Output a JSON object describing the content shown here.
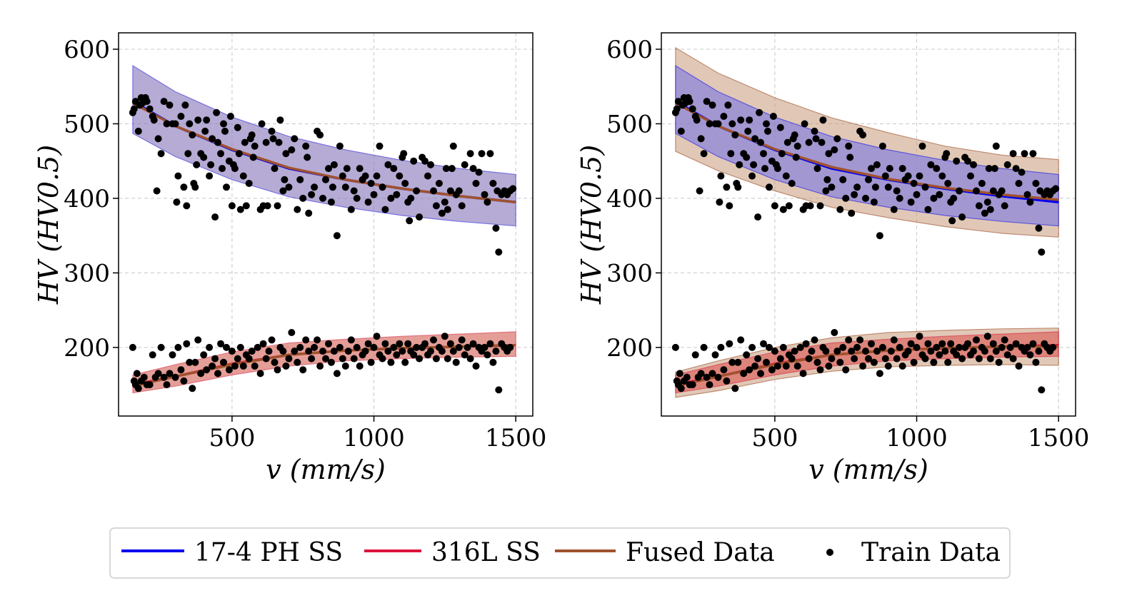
{
  "chart_data": [
    {
      "type": "scatter",
      "panel": "left",
      "title": "",
      "xlabel": "v (mm/s)",
      "ylabel": "HV (HV0.5)",
      "xlim": [
        100,
        1560
      ],
      "ylim": [
        108,
        622
      ],
      "xticks": [
        500,
        1000,
        1500
      ],
      "yticks": [
        200,
        300,
        400,
        500,
        600
      ],
      "grid": true,
      "series": [
        {
          "name": "17-4 PH SS",
          "color": "#0000ee",
          "x": [
            150,
            300,
            500,
            700,
            900,
            1100,
            1300,
            1500
          ],
          "y": [
            530,
            497,
            465,
            440,
            425,
            413,
            403,
            395
          ],
          "band_lower": [
            487,
            456,
            425,
            402,
            388,
            377,
            369,
            363
          ],
          "band_upper": [
            578,
            543,
            509,
            483,
            465,
            451,
            440,
            432
          ]
        },
        {
          "name": "316L SS",
          "color": "#dc143c",
          "x": [
            150,
            300,
            500,
            700,
            900,
            1100,
            1300,
            1500
          ],
          "y": [
            150,
            161,
            178,
            190,
            196,
            199,
            201,
            203
          ],
          "band_lower": [
            139,
            148,
            163,
            175,
            182,
            185,
            187,
            188
          ],
          "band_upper": [
            163,
            177,
            194,
            206,
            211,
            215,
            218,
            221
          ]
        },
        {
          "name": "Fused Data",
          "color": "#a0522d",
          "x": [
            150,
            300,
            500,
            700,
            900,
            1100,
            1300,
            1500
          ],
          "y_high": [
            528,
            497,
            466,
            441,
            425,
            413,
            403,
            395
          ],
          "y_low": [
            148,
            161,
            177,
            190,
            196,
            199,
            201,
            203
          ]
        }
      ]
    },
    {
      "type": "scatter",
      "panel": "right",
      "title": "",
      "xlabel": "v (mm/s)",
      "ylabel": "HV (HV0.5)",
      "xlim": [
        100,
        1560
      ],
      "ylim": [
        108,
        622
      ],
      "xticks": [
        500,
        1000,
        1500
      ],
      "yticks": [
        200,
        300,
        400,
        500,
        600
      ],
      "grid": true,
      "series": [
        {
          "name": "17-4 PH SS",
          "color": "#0000ee",
          "x": [
            150,
            300,
            500,
            700,
            900,
            1100,
            1300,
            1500
          ],
          "y": [
            530,
            497,
            465,
            440,
            425,
            413,
            403,
            395
          ],
          "band_lower": [
            487,
            456,
            425,
            402,
            388,
            377,
            369,
            363
          ],
          "band_upper": [
            578,
            543,
            509,
            483,
            465,
            451,
            440,
            432
          ]
        },
        {
          "name": "316L SS",
          "color": "#dc143c",
          "x": [
            150,
            300,
            500,
            700,
            900,
            1100,
            1300,
            1500
          ],
          "y": [
            150,
            161,
            178,
            190,
            196,
            199,
            201,
            203
          ],
          "band_lower": [
            139,
            148,
            163,
            175,
            182,
            185,
            187,
            188
          ],
          "band_upper": [
            163,
            177,
            194,
            206,
            211,
            215,
            218,
            221
          ]
        },
        {
          "name": "Fused Data",
          "color": "#a0522d",
          "x": [
            150,
            300,
            500,
            700,
            900,
            1100,
            1300,
            1500
          ],
          "y_high": [
            528,
            497,
            466,
            442,
            426,
            414,
            405,
            398
          ],
          "y_low": [
            148,
            161,
            177,
            190,
            196,
            199,
            201,
            201
          ],
          "band_high_lower": [
            463,
            437,
            410,
            388,
            374,
            362,
            353,
            348
          ],
          "band_high_upper": [
            602,
            568,
            535,
            508,
            488,
            470,
            458,
            452
          ],
          "band_low_lower": [
            133,
            142,
            157,
            168,
            174,
            176,
            177,
            176
          ],
          "band_low_upper": [
            167,
            182,
            200,
            213,
            220,
            223,
            225,
            226
          ]
        }
      ]
    }
  ],
  "train_data": {
    "name": "Train Data",
    "color": "#000000",
    "upper_points": [
      [
        150,
        515
      ],
      [
        155,
        520
      ],
      [
        160,
        530
      ],
      [
        170,
        490
      ],
      [
        175,
        525
      ],
      [
        180,
        535
      ],
      [
        185,
        528
      ],
      [
        195,
        535
      ],
      [
        200,
        530
      ],
      [
        210,
        520
      ],
      [
        220,
        510
      ],
      [
        225,
        505
      ],
      [
        235,
        410
      ],
      [
        240,
        480
      ],
      [
        250,
        460
      ],
      [
        260,
        530
      ],
      [
        270,
        500
      ],
      [
        280,
        525
      ],
      [
        290,
        500
      ],
      [
        300,
        500
      ],
      [
        305,
        395
      ],
      [
        310,
        430
      ],
      [
        320,
        510
      ],
      [
        330,
        415
      ],
      [
        335,
        525
      ],
      [
        340,
        390
      ],
      [
        345,
        460
      ],
      [
        350,
        500
      ],
      [
        360,
        485
      ],
      [
        365,
        420
      ],
      [
        370,
        415
      ],
      [
        375,
        445
      ],
      [
        380,
        505
      ],
      [
        390,
        460
      ],
      [
        400,
        455
      ],
      [
        405,
        490
      ],
      [
        410,
        505
      ],
      [
        420,
        430
      ],
      [
        425,
        445
      ],
      [
        430,
        480
      ],
      [
        440,
        375
      ],
      [
        445,
        515
      ],
      [
        450,
        475
      ],
      [
        460,
        460
      ],
      [
        465,
        440
      ],
      [
        470,
        500
      ],
      [
        475,
        490
      ],
      [
        480,
        415
      ],
      [
        490,
        450
      ],
      [
        495,
        510
      ],
      [
        500,
        390
      ],
      [
        505,
        445
      ],
      [
        510,
        440
      ],
      [
        520,
        495
      ],
      [
        525,
        460
      ],
      [
        530,
        385
      ],
      [
        540,
        430
      ],
      [
        545,
        475
      ],
      [
        550,
        390
      ],
      [
        560,
        420
      ],
      [
        565,
        480
      ],
      [
        570,
        485
      ],
      [
        575,
        455
      ],
      [
        580,
        470
      ],
      [
        600,
        385
      ],
      [
        605,
        500
      ],
      [
        610,
        390
      ],
      [
        620,
        475
      ],
      [
        625,
        390
      ],
      [
        640,
        490
      ],
      [
        645,
        480
      ],
      [
        650,
        440
      ],
      [
        660,
        390
      ],
      [
        665,
        475
      ],
      [
        670,
        505
      ],
      [
        680,
        410
      ],
      [
        685,
        425
      ],
      [
        690,
        460
      ],
      [
        700,
        415
      ],
      [
        710,
        465
      ],
      [
        720,
        480
      ],
      [
        730,
        385
      ],
      [
        740,
        425
      ],
      [
        750,
        400
      ],
      [
        760,
        470
      ],
      [
        765,
        455
      ],
      [
        770,
        380
      ],
      [
        780,
        405
      ],
      [
        790,
        415
      ],
      [
        800,
        490
      ],
      [
        810,
        485
      ],
      [
        820,
        400
      ],
      [
        830,
        425
      ],
      [
        840,
        440
      ],
      [
        850,
        395
      ],
      [
        855,
        415
      ],
      [
        860,
        445
      ],
      [
        870,
        350
      ],
      [
        880,
        470
      ],
      [
        890,
        430
      ],
      [
        900,
        415
      ],
      [
        905,
        440
      ],
      [
        920,
        385
      ],
      [
        930,
        410
      ],
      [
        940,
        400
      ],
      [
        950,
        440
      ],
      [
        960,
        425
      ],
      [
        970,
        430
      ],
      [
        980,
        395
      ],
      [
        990,
        420
      ],
      [
        1000,
        405
      ],
      [
        1010,
        430
      ],
      [
        1020,
        470
      ],
      [
        1030,
        415
      ],
      [
        1040,
        385
      ],
      [
        1050,
        445
      ],
      [
        1060,
        400
      ],
      [
        1070,
        440
      ],
      [
        1080,
        405
      ],
      [
        1090,
        430
      ],
      [
        1100,
        455
      ],
      [
        1105,
        460
      ],
      [
        1110,
        420
      ],
      [
        1120,
        395
      ],
      [
        1125,
        370
      ],
      [
        1130,
        400
      ],
      [
        1140,
        450
      ],
      [
        1150,
        410
      ],
      [
        1160,
        375
      ],
      [
        1170,
        455
      ],
      [
        1180,
        450
      ],
      [
        1190,
        430
      ],
      [
        1200,
        445
      ],
      [
        1210,
        410
      ],
      [
        1220,
        390
      ],
      [
        1230,
        420
      ],
      [
        1240,
        380
      ],
      [
        1250,
        395
      ],
      [
        1255,
        440
      ],
      [
        1260,
        385
      ],
      [
        1270,
        410
      ],
      [
        1275,
        440
      ],
      [
        1280,
        470
      ],
      [
        1290,
        405
      ],
      [
        1300,
        410
      ],
      [
        1310,
        390
      ],
      [
        1320,
        445
      ],
      [
        1340,
        460
      ],
      [
        1350,
        440
      ],
      [
        1360,
        420
      ],
      [
        1370,
        435
      ],
      [
        1380,
        460
      ],
      [
        1390,
        405
      ],
      [
        1400,
        395
      ],
      [
        1410,
        460
      ],
      [
        1420,
        420
      ],
      [
        1430,
        360
      ],
      [
        1435,
        410
      ],
      [
        1440,
        328
      ],
      [
        1450,
        405
      ],
      [
        1460,
        410
      ],
      [
        1470,
        405
      ],
      [
        1480,
        410
      ],
      [
        1490,
        413
      ]
    ],
    "lower_points": [
      [
        150,
        200
      ],
      [
        155,
        155
      ],
      [
        160,
        150
      ],
      [
        165,
        165
      ],
      [
        170,
        145
      ],
      [
        180,
        155
      ],
      [
        190,
        160
      ],
      [
        200,
        150
      ],
      [
        210,
        150
      ],
      [
        220,
        190
      ],
      [
        230,
        160
      ],
      [
        240,
        165
      ],
      [
        250,
        200
      ],
      [
        260,
        160
      ],
      [
        270,
        150
      ],
      [
        280,
        165
      ],
      [
        290,
        190
      ],
      [
        300,
        160
      ],
      [
        310,
        200
      ],
      [
        320,
        170
      ],
      [
        330,
        155
      ],
      [
        340,
        205
      ],
      [
        350,
        180
      ],
      [
        360,
        145
      ],
      [
        370,
        180
      ],
      [
        380,
        210
      ],
      [
        390,
        165
      ],
      [
        400,
        190
      ],
      [
        410,
        170
      ],
      [
        420,
        200
      ],
      [
        430,
        175
      ],
      [
        440,
        185
      ],
      [
        450,
        165
      ],
      [
        460,
        205
      ],
      [
        470,
        180
      ],
      [
        480,
        200
      ],
      [
        490,
        170
      ],
      [
        500,
        195
      ],
      [
        510,
        175
      ],
      [
        520,
        185
      ],
      [
        530,
        200
      ],
      [
        540,
        175
      ],
      [
        550,
        190
      ],
      [
        560,
        185
      ],
      [
        570,
        195
      ],
      [
        580,
        175
      ],
      [
        590,
        200
      ],
      [
        600,
        165
      ],
      [
        610,
        205
      ],
      [
        620,
        185
      ],
      [
        630,
        195
      ],
      [
        640,
        210
      ],
      [
        650,
        180
      ],
      [
        660,
        170
      ],
      [
        670,
        200
      ],
      [
        680,
        195
      ],
      [
        690,
        175
      ],
      [
        700,
        185
      ],
      [
        710,
        220
      ],
      [
        720,
        195
      ],
      [
        730,
        180
      ],
      [
        740,
        200
      ],
      [
        750,
        170
      ],
      [
        760,
        210
      ],
      [
        770,
        195
      ],
      [
        780,
        185
      ],
      [
        790,
        200
      ],
      [
        800,
        210
      ],
      [
        810,
        175
      ],
      [
        820,
        195
      ],
      [
        830,
        185
      ],
      [
        840,
        205
      ],
      [
        850,
        180
      ],
      [
        860,
        195
      ],
      [
        870,
        165
      ],
      [
        880,
        200
      ],
      [
        890,
        185
      ],
      [
        900,
        175
      ],
      [
        910,
        195
      ],
      [
        920,
        210
      ],
      [
        930,
        185
      ],
      [
        940,
        200
      ],
      [
        950,
        175
      ],
      [
        960,
        190
      ],
      [
        970,
        195
      ],
      [
        980,
        205
      ],
      [
        990,
        180
      ],
      [
        1000,
        200
      ],
      [
        1010,
        215
      ],
      [
        1020,
        190
      ],
      [
        1030,
        185
      ],
      [
        1040,
        205
      ],
      [
        1050,
        195
      ],
      [
        1060,
        180
      ],
      [
        1070,
        200
      ],
      [
        1080,
        190
      ],
      [
        1090,
        205
      ],
      [
        1100,
        195
      ],
      [
        1110,
        180
      ],
      [
        1120,
        205
      ],
      [
        1130,
        195
      ],
      [
        1140,
        190
      ],
      [
        1150,
        200
      ],
      [
        1160,
        185
      ],
      [
        1170,
        200
      ],
      [
        1180,
        205
      ],
      [
        1190,
        190
      ],
      [
        1200,
        195
      ],
      [
        1210,
        210
      ],
      [
        1220,
        185
      ],
      [
        1230,
        200
      ],
      [
        1240,
        195
      ],
      [
        1250,
        215
      ],
      [
        1260,
        185
      ],
      [
        1270,
        205
      ],
      [
        1280,
        195
      ],
      [
        1290,
        180
      ],
      [
        1300,
        200
      ],
      [
        1310,
        210
      ],
      [
        1320,
        190
      ],
      [
        1330,
        200
      ],
      [
        1340,
        185
      ],
      [
        1350,
        205
      ],
      [
        1360,
        175
      ],
      [
        1370,
        200
      ],
      [
        1380,
        195
      ],
      [
        1390,
        200
      ],
      [
        1400,
        190
      ],
      [
        1410,
        205
      ],
      [
        1420,
        180
      ],
      [
        1430,
        195
      ],
      [
        1440,
        143
      ],
      [
        1450,
        205
      ],
      [
        1460,
        200
      ],
      [
        1470,
        195
      ],
      [
        1480,
        200
      ]
    ]
  },
  "legend": {
    "placement": "bottom-center",
    "items": [
      {
        "label": "17-4 PH SS",
        "color": "#0000ee",
        "kind": "line"
      },
      {
        "label": "316L SS",
        "color": "#dc143c",
        "kind": "line"
      },
      {
        "label": "Fused Data",
        "color": "#a0522d",
        "kind": "line"
      },
      {
        "label": "Train Data",
        "color": "#000000",
        "kind": "marker"
      }
    ]
  },
  "colors": {
    "band_17_4": "#7070e8",
    "band_316l": "#d94040",
    "band_fused": "#c89a7a",
    "grid": "#c8c8c8"
  }
}
